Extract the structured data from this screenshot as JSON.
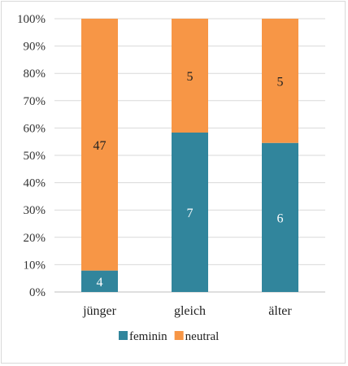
{
  "chart_data": {
    "type": "bar",
    "stacked": true,
    "percent_stacked": true,
    "categories": [
      "jünger",
      "gleich",
      "älter"
    ],
    "series": [
      {
        "name": "feminin",
        "values": [
          4,
          7,
          6
        ],
        "labels": [
          "4",
          "7",
          "6"
        ],
        "color": "#31859c",
        "label_color": "#ffffff"
      },
      {
        "name": "neutral",
        "values": [
          47,
          5,
          5
        ],
        "labels": [
          "47",
          "5",
          "5"
        ],
        "color": "#f79646",
        "label_color": "#222222"
      }
    ],
    "y_ticks": [
      "0%",
      "10%",
      "20%",
      "30%",
      "40%",
      "50%",
      "60%",
      "70%",
      "80%",
      "90%",
      "100%"
    ],
    "ylim": [
      0,
      100
    ],
    "grid": true,
    "legend": "bottom",
    "title": "",
    "xlabel": "",
    "ylabel": ""
  }
}
